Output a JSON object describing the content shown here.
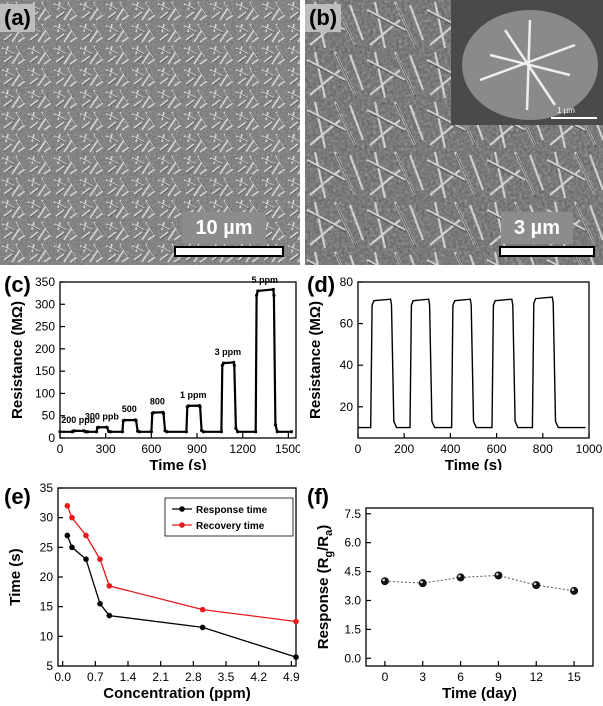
{
  "panels": {
    "a": {
      "label": "(a)",
      "scale": "10 µm"
    },
    "b": {
      "label": "(b)",
      "scale": "3 µm",
      "inset_scale": "1 µm"
    },
    "c": {
      "label": "(c)"
    },
    "d": {
      "label": "(d)"
    },
    "e": {
      "label": "(e)"
    },
    "f": {
      "label": "(f)"
    }
  },
  "chart_data": [
    {
      "id": "c",
      "type": "line",
      "xlabel": "Time (s)",
      "ylabel": "Resistance (MΩ)",
      "xlim": [
        0,
        1550
      ],
      "ylim": [
        0,
        350
      ],
      "xticks": [
        0,
        300,
        600,
        900,
        1200,
        1500
      ],
      "yticks": [
        0,
        50,
        100,
        150,
        200,
        250,
        300,
        350
      ],
      "baseline": 14,
      "pulses": [
        {
          "label": "200 ppb",
          "start": 80,
          "end": 160,
          "peak": 16
        },
        {
          "label": "300 ppb",
          "start": 240,
          "end": 310,
          "peak": 24
        },
        {
          "label": "500",
          "start": 410,
          "end": 500,
          "peak": 40
        },
        {
          "label": "800",
          "start": 600,
          "end": 680,
          "peak": 57
        },
        {
          "label": "1 ppm",
          "start": 830,
          "end": 920,
          "peak": 72
        },
        {
          "label": "3 ppm",
          "start": 1060,
          "end": 1145,
          "peak": 168
        },
        {
          "label": "5 ppm",
          "start": 1285,
          "end": 1405,
          "peak": 330
        }
      ],
      "grid": false
    },
    {
      "id": "d",
      "type": "line",
      "xlabel": "Time (s)",
      "ylabel": "Resistance (MΩ)",
      "xlim": [
        0,
        1000
      ],
      "ylim": [
        5,
        80
      ],
      "xticks": [
        0,
        200,
        400,
        600,
        800,
        1000
      ],
      "yticks": [
        20,
        40,
        60,
        80
      ],
      "baseline": 10,
      "pulses": [
        {
          "start": 55,
          "end": 145,
          "peak": 71
        },
        {
          "start": 225,
          "end": 310,
          "peak": 71
        },
        {
          "start": 405,
          "end": 490,
          "peak": 71
        },
        {
          "start": 580,
          "end": 670,
          "peak": 71
        },
        {
          "start": 755,
          "end": 845,
          "peak": 72
        }
      ],
      "grid": false
    },
    {
      "id": "e",
      "type": "line",
      "xlabel": "Concentration (ppm)",
      "ylabel": "Time (s)",
      "xlim": [
        -0.1,
        5.0
      ],
      "ylim": [
        5,
        35
      ],
      "xticks": [
        0.0,
        0.7,
        1.4,
        2.1,
        2.8,
        3.5,
        4.2,
        4.9
      ],
      "yticks": [
        5,
        10,
        15,
        20,
        25,
        30,
        35
      ],
      "legend": "top-right",
      "series": [
        {
          "name": "Response time",
          "color": "#000000",
          "x": [
            0.1,
            0.2,
            0.5,
            0.8,
            1.0,
            3.0,
            5.0
          ],
          "y": [
            27,
            25,
            23,
            15.5,
            13.5,
            11.5,
            6.5
          ]
        },
        {
          "name": "Recovery time",
          "color": "#e41a1c",
          "x": [
            0.1,
            0.2,
            0.5,
            0.8,
            1.0,
            3.0,
            5.0
          ],
          "y": [
            32,
            30,
            27,
            23,
            18.5,
            14.5,
            12.5
          ]
        }
      ],
      "grid": false
    },
    {
      "id": "f",
      "type": "scatter",
      "xlabel": "Time (day)",
      "ylabel_html": "Response (R<tspan font-size='11' dy='4'>g</tspan><tspan dy='-4'>/R</tspan><tspan font-size='11' dy='4'>a</tspan><tspan dy='-4'>)</tspan>",
      "xlim": [
        -1.5,
        16.5
      ],
      "ylim": [
        -0.4,
        7.8
      ],
      "xticks": [
        0,
        3,
        6,
        9,
        12,
        15
      ],
      "yticks": [
        0.0,
        1.5,
        3.0,
        4.5,
        6.0,
        7.5
      ],
      "series": [
        {
          "name": "",
          "x": [
            0,
            3,
            6,
            9,
            12,
            15
          ],
          "y": [
            4.0,
            3.9,
            4.2,
            4.3,
            3.8,
            3.5
          ]
        }
      ],
      "grid": false
    }
  ]
}
